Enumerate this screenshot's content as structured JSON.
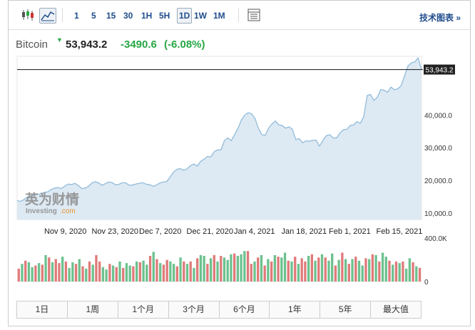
{
  "toolbar": {
    "icons": [
      "candlestick-icon",
      "area-chart-icon",
      "table-icon"
    ],
    "timeframes": [
      "1",
      "5",
      "15",
      "30",
      "1H",
      "5H",
      "1D",
      "1W",
      "1M"
    ],
    "active_timeframe": "1D",
    "tech_chart_label": "技术图表 »"
  },
  "header": {
    "asset": "Bitcoin",
    "price": "53,943.2",
    "change": "-3490.6",
    "change_pct": "(-6.08%)",
    "change_color": "#28a745"
  },
  "watermark": {
    "cn": "英为财情",
    "en": "Investing",
    "suffix": ".com"
  },
  "chart_data": {
    "type": "area",
    "line_color": "#8bb8d8",
    "fill_color": "#dde9f3",
    "current_price_label": "53,943.2",
    "ylim": [
      8000,
      58000
    ],
    "y_ticks": [
      10000,
      20000,
      30000,
      40000
    ],
    "y_tick_labels": [
      "10,000.0",
      "20,000.0",
      "30,000.0",
      "40,000.0"
    ],
    "x_tick_labels": [
      "Nov 9, 2020",
      "Nov 23, 2020",
      "Dec 7, 2020",
      "Dec 21, 2020",
      "Jan 4, 2021",
      "Jan 18, 2021",
      "Feb 1, 2021",
      "Feb 15, 2021"
    ],
    "values": [
      13800,
      13600,
      14100,
      14900,
      15200,
      15500,
      15700,
      15900,
      16300,
      16500,
      17200,
      17600,
      17800,
      17500,
      18200,
      18900,
      18700,
      19100,
      18400,
      17500,
      17600,
      18200,
      19200,
      19600,
      19200,
      18500,
      19000,
      19500,
      19300,
      18600,
      18800,
      19300,
      19200,
      18500,
      18600,
      18900,
      19100,
      19300,
      18800,
      18700,
      18200,
      18600,
      19200,
      19500,
      19600,
      21000,
      22500,
      23400,
      23600,
      23100,
      23500,
      24500,
      25000,
      24400,
      25800,
      26500,
      27300,
      27200,
      28800,
      29300,
      29400,
      32200,
      33000,
      32200,
      34000,
      36000,
      38500,
      40000,
      40700,
      40400,
      39000,
      36000,
      34000,
      33800,
      36000,
      37300,
      38200,
      37000,
      36800,
      36000,
      36400,
      35700,
      32500,
      32800,
      31500,
      32100,
      32000,
      32300,
      32300,
      30500,
      32300,
      33700,
      34000,
      33000,
      33000,
      34500,
      35500,
      35600,
      36800,
      37000,
      38000,
      37500,
      39500,
      46000,
      46300,
      44500,
      45500,
      47800,
      47600,
      47000,
      48600,
      47800,
      48000,
      49000,
      52000,
      55000,
      56000,
      56300,
      57500,
      53943
    ],
    "volume_axis_labels": [
      "400.0K",
      "0"
    ],
    "volume_max": 480,
    "volumes": [
      160,
      220,
      260,
      240,
      180,
      200,
      230,
      210,
      330,
      300,
      240,
      280,
      230,
      310,
      250,
      170,
      240,
      220,
      280,
      190,
      160,
      250,
      210,
      330,
      250,
      180,
      150,
      220,
      200,
      180,
      250,
      170,
      230,
      200,
      190,
      250,
      240,
      260,
      210,
      320,
      370,
      280,
      230,
      210,
      270,
      250,
      220,
      190,
      300,
      250,
      220,
      250,
      170,
      290,
      330,
      320,
      220,
      290,
      330,
      250,
      320,
      300,
      270,
      340,
      350,
      320,
      340,
      380,
      380,
      220,
      250,
      300,
      330,
      200,
      280,
      250,
      330,
      310,
      300,
      360,
      260,
      250,
      310,
      220,
      290,
      250,
      320,
      340,
      260,
      300,
      340,
      300,
      260,
      350,
      200,
      270,
      360,
      280,
      220,
      280,
      310,
      260,
      200,
      290,
      280,
      340,
      330,
      250,
      360,
      310,
      260,
      210,
      250,
      230,
      250,
      160,
      290,
      240,
      190,
      170
    ],
    "volume_up": [
      false,
      true,
      false,
      true,
      true,
      false,
      true,
      false,
      true,
      false,
      true,
      false,
      false,
      true,
      false,
      true,
      true,
      false,
      true,
      false,
      true,
      false,
      true,
      false,
      false,
      true,
      true,
      false,
      true,
      false,
      true,
      false,
      true,
      true,
      false,
      true,
      false,
      true,
      true,
      false,
      true,
      false,
      true,
      false,
      false,
      true,
      true,
      false,
      true,
      false,
      true,
      false,
      true,
      false,
      true,
      true,
      false,
      true,
      false,
      true,
      false,
      true,
      true,
      true,
      false,
      true,
      true,
      true,
      false,
      false,
      true,
      false,
      true,
      false,
      true,
      false,
      true,
      false,
      true,
      true,
      false,
      true,
      false,
      true,
      false,
      false,
      true,
      false,
      true,
      false,
      true,
      false,
      true,
      true,
      false,
      true,
      false,
      true,
      false,
      true,
      false,
      true,
      true,
      false,
      true,
      false,
      true,
      false,
      true,
      true,
      false,
      true,
      false,
      true,
      false,
      true,
      true,
      false,
      true,
      false
    ],
    "up_color": "#6cc18e",
    "down_color": "#e07a7a"
  },
  "ranges": [
    "1日",
    "1周",
    "1个月",
    "3个月",
    "6个月",
    "1年",
    "5年",
    "最大值"
  ]
}
